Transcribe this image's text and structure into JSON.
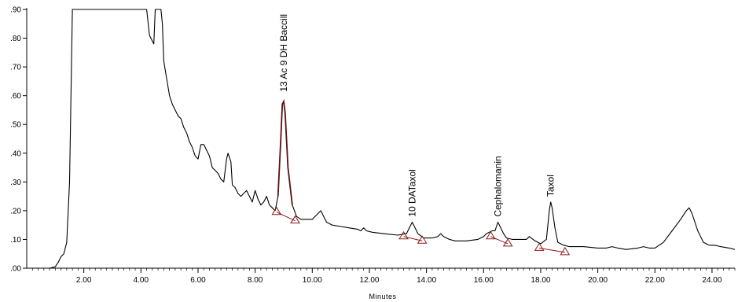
{
  "chart_data": {
    "type": "line",
    "title": "",
    "xlabel": "Minutes",
    "ylabel": "",
    "xlim": [
      0.0,
      24.8
    ],
    "ylim": [
      0.0,
      0.9
    ],
    "grid": false,
    "x_ticks": [
      2,
      4,
      6,
      8,
      10,
      12,
      14,
      16,
      18,
      20,
      22,
      24
    ],
    "x_tick_labels": [
      "2.00",
      "4.00",
      "6.00",
      "8.00",
      "10.00",
      "12.00",
      "14.00",
      "16.00",
      "18.00",
      "20.00",
      "22.00",
      "24.00"
    ],
    "y_ticks": [
      0.0,
      0.1,
      0.2,
      0.3,
      0.4,
      0.5,
      0.6,
      0.7,
      0.8,
      0.9
    ],
    "y_tick_labels": [
      ".00",
      ".10",
      ".20",
      ".30",
      ".40",
      ".50",
      ".60",
      ".70",
      ".80",
      ".90"
    ],
    "series": [
      {
        "points": [
          [
            0.0,
            0.0
          ],
          [
            0.8,
            0.0
          ],
          [
            1.0,
            0.005
          ],
          [
            1.1,
            0.02
          ],
          [
            1.2,
            0.04
          ],
          [
            1.3,
            0.05
          ],
          [
            1.4,
            0.09
          ],
          [
            1.5,
            0.3
          ],
          [
            1.55,
            0.6
          ],
          [
            1.6,
            0.9
          ],
          [
            4.2,
            0.9
          ],
          [
            4.3,
            0.81
          ],
          [
            4.35,
            0.8
          ],
          [
            4.45,
            0.78
          ],
          [
            4.5,
            0.9
          ],
          [
            4.7,
            0.9
          ],
          [
            4.75,
            0.85
          ],
          [
            4.8,
            0.72
          ],
          [
            4.9,
            0.66
          ],
          [
            5.0,
            0.6
          ],
          [
            5.1,
            0.57
          ],
          [
            5.2,
            0.55
          ],
          [
            5.3,
            0.53
          ],
          [
            5.4,
            0.52
          ],
          [
            5.5,
            0.49
          ],
          [
            5.6,
            0.47
          ],
          [
            5.7,
            0.44
          ],
          [
            5.8,
            0.42
          ],
          [
            5.9,
            0.39
          ],
          [
            6.0,
            0.38
          ],
          [
            6.1,
            0.43
          ],
          [
            6.2,
            0.43
          ],
          [
            6.3,
            0.41
          ],
          [
            6.4,
            0.39
          ],
          [
            6.5,
            0.35
          ],
          [
            6.6,
            0.34
          ],
          [
            6.7,
            0.33
          ],
          [
            6.8,
            0.31
          ],
          [
            6.9,
            0.3
          ],
          [
            7.0,
            0.38
          ],
          [
            7.05,
            0.4
          ],
          [
            7.15,
            0.37
          ],
          [
            7.2,
            0.29
          ],
          [
            7.3,
            0.28
          ],
          [
            7.4,
            0.26
          ],
          [
            7.5,
            0.25
          ],
          [
            7.6,
            0.26
          ],
          [
            7.7,
            0.27
          ],
          [
            7.8,
            0.25
          ],
          [
            7.9,
            0.23
          ],
          [
            8.0,
            0.27
          ],
          [
            8.1,
            0.24
          ],
          [
            8.2,
            0.22
          ],
          [
            8.3,
            0.23
          ],
          [
            8.4,
            0.25
          ],
          [
            8.5,
            0.22
          ],
          [
            8.6,
            0.21
          ],
          [
            8.7,
            0.2
          ],
          [
            8.8,
            0.25
          ],
          [
            8.9,
            0.45
          ],
          [
            8.95,
            0.57
          ],
          [
            9.0,
            0.58
          ],
          [
            9.05,
            0.54
          ],
          [
            9.15,
            0.35
          ],
          [
            9.3,
            0.22
          ],
          [
            9.45,
            0.18
          ],
          [
            9.6,
            0.17
          ],
          [
            9.8,
            0.17
          ],
          [
            10.0,
            0.17
          ],
          [
            10.1,
            0.18
          ],
          [
            10.2,
            0.19
          ],
          [
            10.3,
            0.2
          ],
          [
            10.4,
            0.18
          ],
          [
            10.5,
            0.16
          ],
          [
            10.7,
            0.15
          ],
          [
            11.0,
            0.145
          ],
          [
            11.3,
            0.14
          ],
          [
            11.6,
            0.135
          ],
          [
            11.7,
            0.13
          ],
          [
            11.8,
            0.14
          ],
          [
            11.9,
            0.13
          ],
          [
            12.1,
            0.125
          ],
          [
            12.5,
            0.12
          ],
          [
            13.0,
            0.115
          ],
          [
            13.3,
            0.12
          ],
          [
            13.4,
            0.14
          ],
          [
            13.5,
            0.16
          ],
          [
            13.6,
            0.14
          ],
          [
            13.7,
            0.12
          ],
          [
            13.9,
            0.105
          ],
          [
            14.2,
            0.105
          ],
          [
            14.4,
            0.11
          ],
          [
            14.5,
            0.12
          ],
          [
            14.6,
            0.11
          ],
          [
            14.8,
            0.1
          ],
          [
            15.0,
            0.095
          ],
          [
            15.4,
            0.095
          ],
          [
            15.8,
            0.1
          ],
          [
            16.0,
            0.11
          ],
          [
            16.1,
            0.12
          ],
          [
            16.3,
            0.13
          ],
          [
            16.4,
            0.13
          ],
          [
            16.5,
            0.16
          ],
          [
            16.6,
            0.14
          ],
          [
            16.7,
            0.12
          ],
          [
            16.8,
            0.105
          ],
          [
            17.0,
            0.1
          ],
          [
            17.3,
            0.1
          ],
          [
            17.5,
            0.1
          ],
          [
            17.6,
            0.11
          ],
          [
            17.8,
            0.095
          ],
          [
            18.0,
            0.085
          ],
          [
            18.2,
            0.1
          ],
          [
            18.3,
            0.2
          ],
          [
            18.35,
            0.23
          ],
          [
            18.4,
            0.21
          ],
          [
            18.5,
            0.14
          ],
          [
            18.6,
            0.09
          ],
          [
            18.8,
            0.08
          ],
          [
            19.0,
            0.075
          ],
          [
            19.5,
            0.075
          ],
          [
            20.0,
            0.07
          ],
          [
            20.3,
            0.07
          ],
          [
            20.5,
            0.075
          ],
          [
            20.7,
            0.07
          ],
          [
            21.0,
            0.065
          ],
          [
            21.4,
            0.07
          ],
          [
            21.6,
            0.075
          ],
          [
            21.8,
            0.07
          ],
          [
            22.0,
            0.07
          ],
          [
            22.3,
            0.09
          ],
          [
            22.6,
            0.13
          ],
          [
            22.9,
            0.17
          ],
          [
            23.1,
            0.2
          ],
          [
            23.2,
            0.21
          ],
          [
            23.3,
            0.19
          ],
          [
            23.5,
            0.13
          ],
          [
            23.7,
            0.09
          ],
          [
            23.9,
            0.08
          ],
          [
            24.1,
            0.08
          ],
          [
            24.3,
            0.075
          ],
          [
            24.6,
            0.07
          ],
          [
            24.8,
            0.065
          ]
        ]
      }
    ],
    "baselines": [
      {
        "from": [
          8.75,
          0.195
        ],
        "to": [
          9.4,
          0.165
        ]
      },
      {
        "from": [
          13.2,
          0.11
        ],
        "to": [
          13.85,
          0.095
        ]
      },
      {
        "from": [
          16.25,
          0.11
        ],
        "to": [
          16.85,
          0.085
        ]
      },
      {
        "from": [
          17.95,
          0.07
        ],
        "to": [
          18.85,
          0.055
        ]
      }
    ],
    "peak_markers": [
      [
        8.75,
        0.195
      ],
      [
        9.4,
        0.165
      ],
      [
        13.2,
        0.11
      ],
      [
        13.85,
        0.095
      ],
      [
        16.25,
        0.11
      ],
      [
        16.85,
        0.085
      ],
      [
        17.95,
        0.07
      ],
      [
        18.85,
        0.055
      ]
    ],
    "annotations": [
      {
        "text": "13 Ac 9 DH Baccill",
        "x": 9.0,
        "y": 0.6
      },
      {
        "text": "10 DATaxol",
        "x": 13.5,
        "y": 0.165
      },
      {
        "text": "Cephalomanin",
        "x": 16.5,
        "y": 0.165
      },
      {
        "text": "Taxol",
        "x": 18.35,
        "y": 0.235
      }
    ],
    "colors": {
      "trace": "#000000",
      "integrated_peak": "#5a0f0f",
      "baseline": "#8b1a1a",
      "marker": "#8b1a1a",
      "axis": "#000000"
    }
  }
}
